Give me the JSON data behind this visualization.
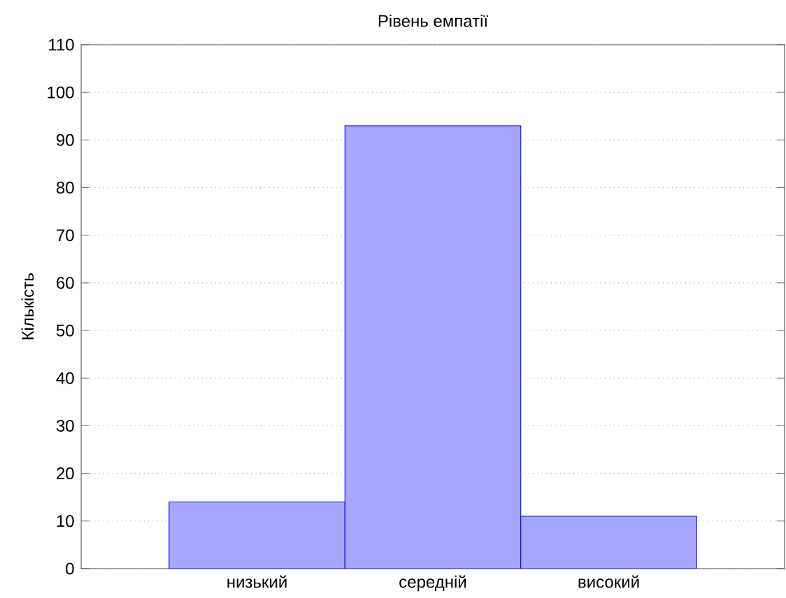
{
  "chart_data": {
    "type": "bar",
    "title": "Рівень емпатії",
    "ylabel": "Кількість",
    "categories": [
      "низький",
      "середній",
      "високий"
    ],
    "values": [
      14,
      93,
      11
    ],
    "color": "#0000ff",
    "ylim": [
      0,
      110
    ],
    "yticks": [
      0,
      10,
      20,
      30,
      40,
      50,
      60,
      70,
      80,
      90,
      100,
      110
    ],
    "grid": "y"
  }
}
